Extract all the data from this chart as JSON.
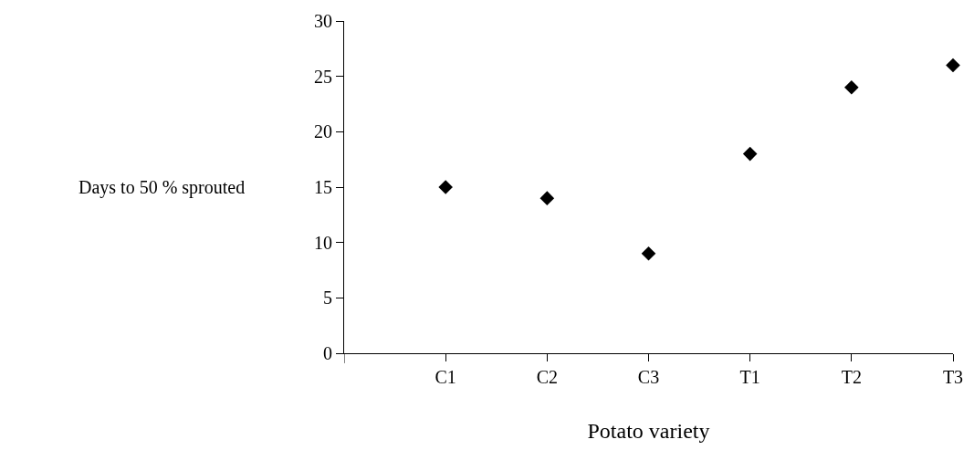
{
  "chart_data": {
    "type": "scatter",
    "xlabel": "Potato variety",
    "ylabel": "Days to 50 % sprouted",
    "categories": [
      "C1",
      "C2",
      "C3",
      "T1",
      "T2",
      "T3"
    ],
    "values": [
      15,
      14,
      9,
      18,
      24,
      26
    ],
    "color": "#000000",
    "marker": "diamond",
    "ylim": [
      0,
      30
    ],
    "yticks": [
      0,
      5,
      10,
      15,
      20,
      25,
      30
    ],
    "legend": false
  }
}
